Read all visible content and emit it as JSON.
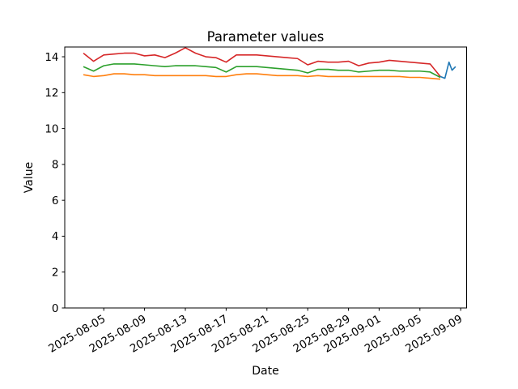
{
  "chart_data": {
    "type": "line",
    "title": "Parameter values",
    "xlabel": "Date",
    "ylabel": "Value",
    "grid": false,
    "legend": "none",
    "background_color": "#ffffff",
    "axis_color": "#000000",
    "ylim": [
      0,
      14.54
    ],
    "xlim_days": [
      -1.83,
      37.54
    ],
    "y_axis": {
      "ticks": [
        0,
        2,
        4,
        6,
        8,
        10,
        12,
        14
      ]
    },
    "x_axis": {
      "start_date": "2025-08-03",
      "tick_labels": [
        "2025-08-05",
        "2025-08-09",
        "2025-08-13",
        "2025-08-17",
        "2025-08-21",
        "2025-08-25",
        "2025-08-29",
        "2025-09-01",
        "2025-09-05",
        "2025-09-09"
      ],
      "tick_day_offsets": [
        2,
        6,
        10,
        14,
        18,
        22,
        26,
        29,
        33,
        37
      ],
      "label_rotation_deg": 30
    },
    "series": [
      {
        "name": "red",
        "color": "#d62728",
        "x_days": [
          0,
          1,
          2,
          3,
          4,
          5,
          6,
          7,
          8,
          9,
          10,
          11,
          12,
          13,
          14,
          15,
          16,
          17,
          18,
          19,
          20,
          21,
          22,
          23,
          24,
          25,
          26,
          27,
          28,
          29,
          30,
          31,
          32,
          33,
          34,
          35
        ],
        "values": [
          14.2,
          13.75,
          14.1,
          14.15,
          14.2,
          14.2,
          14.05,
          14.1,
          13.95,
          14.2,
          14.5,
          14.2,
          14.0,
          13.95,
          13.7,
          14.1,
          14.1,
          14.1,
          14.05,
          14.0,
          13.95,
          13.9,
          13.55,
          13.75,
          13.7,
          13.7,
          13.75,
          13.5,
          13.65,
          13.7,
          13.8,
          13.75,
          13.7,
          13.65,
          13.6,
          12.9
        ]
      },
      {
        "name": "green",
        "color": "#2ca02c",
        "x_days": [
          0,
          1,
          2,
          3,
          4,
          5,
          6,
          7,
          8,
          9,
          10,
          11,
          12,
          13,
          14,
          15,
          16,
          17,
          18,
          19,
          20,
          21,
          22,
          23,
          24,
          25,
          26,
          27,
          28,
          29,
          30,
          31,
          32,
          33,
          34,
          35
        ],
        "values": [
          13.45,
          13.2,
          13.5,
          13.6,
          13.6,
          13.6,
          13.55,
          13.5,
          13.45,
          13.5,
          13.5,
          13.5,
          13.45,
          13.4,
          13.15,
          13.45,
          13.45,
          13.45,
          13.4,
          13.35,
          13.3,
          13.25,
          13.1,
          13.3,
          13.3,
          13.25,
          13.25,
          13.15,
          13.2,
          13.25,
          13.25,
          13.2,
          13.2,
          13.2,
          13.15,
          12.85
        ]
      },
      {
        "name": "orange",
        "color": "#ff7f0e",
        "x_days": [
          0,
          1,
          2,
          3,
          4,
          5,
          6,
          7,
          8,
          9,
          10,
          11,
          12,
          13,
          14,
          15,
          16,
          17,
          18,
          19,
          20,
          21,
          22,
          23,
          24,
          25,
          26,
          27,
          28,
          29,
          30,
          31,
          32,
          33,
          34,
          35
        ],
        "values": [
          13.0,
          12.9,
          12.95,
          13.05,
          13.05,
          13.0,
          13.0,
          12.95,
          12.95,
          12.95,
          12.95,
          12.95,
          12.95,
          12.9,
          12.9,
          13.0,
          13.05,
          13.05,
          13.0,
          12.95,
          12.95,
          12.95,
          12.9,
          12.95,
          12.9,
          12.9,
          12.9,
          12.9,
          12.9,
          12.9,
          12.9,
          12.9,
          12.85,
          12.85,
          12.8,
          12.75
        ]
      },
      {
        "name": "blue",
        "color": "#1f77b4",
        "x_days": [
          35,
          35.45,
          35.85,
          36.15,
          36.5
        ],
        "values": [
          12.9,
          12.8,
          13.7,
          13.25,
          13.45
        ]
      }
    ]
  }
}
